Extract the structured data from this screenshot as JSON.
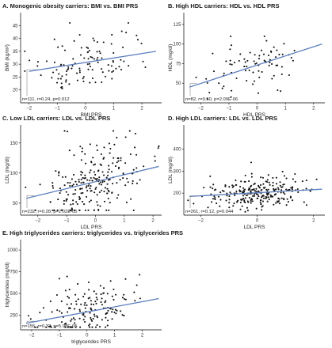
{
  "chart_data": [
    {
      "type": "scatter",
      "panel": "A.",
      "title": "Monogenic obesity carriers: BMI vs. BMI PRS",
      "xlabel": "BMI PRS",
      "ylabel": "BMI (kg/m²)",
      "xlim": [
        -2.3,
        2.7
      ],
      "ylim": [
        15,
        50
      ],
      "xticks": [
        -2,
        -1,
        0,
        1,
        2
      ],
      "yticks": [
        20,
        25,
        30,
        35,
        40,
        45
      ],
      "annotation": "n=111, r=0.24, p=0.012",
      "trend": {
        "x": [
          -2.0,
          2.5
        ],
        "y": [
          27.2,
          35.0
        ]
      },
      "seed": 11,
      "n": 111,
      "xmean": 0.0,
      "xsd": 0.85,
      "slope": 1.8,
      "intercept": 30.3,
      "noise": 5.0,
      "ymin": 17,
      "ymax": 46,
      "grid": false
    },
    {
      "type": "scatter",
      "panel": "B.",
      "title": "High HDL carriers: HDL vs. HDL PRS",
      "xlabel": "HDL PRS",
      "ylabel": "HDL (mg/dl)",
      "xlim": [
        -2.6,
        2.4
      ],
      "ylim": [
        25,
        140
      ],
      "xticks": [
        -2,
        -1,
        0,
        1,
        2
      ],
      "yticks": [
        50,
        75,
        100,
        125
      ],
      "annotation": "n=82, r=0.50, p=2.09E-06",
      "trend": {
        "x": [
          -2.4,
          2.3
        ],
        "y": [
          45,
          100
        ]
      },
      "seed": 22,
      "n": 82,
      "xmean": 0.0,
      "xsd": 0.85,
      "slope": 11.5,
      "intercept": 72,
      "noise": 18,
      "ymin": 30,
      "ymax": 135,
      "grid": false
    },
    {
      "type": "scatter",
      "panel": "C.",
      "title": "Low LDL carriers: LDL vs. LDL PRS",
      "xlabel": "LDL PRS",
      "ylabel": "LDL (mg/dl)",
      "xlim": [
        -2.6,
        2.3
      ],
      "ylim": [
        30,
        180
      ],
      "xticks": [
        -2,
        -1,
        0,
        1,
        2
      ],
      "yticks": [
        50,
        100,
        150
      ],
      "annotation": "n=232, r=0.28, p=2.02E-05",
      "trend": {
        "x": [
          -2.4,
          2.2
        ],
        "y": [
          58,
          111
        ]
      },
      "seed": 33,
      "n": 232,
      "xmean": 0.0,
      "xsd": 0.85,
      "slope": 11.5,
      "intercept": 85,
      "noise": 30,
      "ymin": 38,
      "ymax": 170,
      "grid": false
    },
    {
      "type": "scatter",
      "panel": "D.",
      "title": "High LDL carriers: LDL vs. LDL PRS",
      "xlabel": "LDL PRS",
      "ylabel": "LDL (mg/dl)",
      "xlim": [
        -2.6,
        2.4
      ],
      "ylim": [
        100,
        510
      ],
      "xticks": [
        -2,
        0,
        2
      ],
      "yticks": [
        200,
        300,
        400
      ],
      "annotation": "n=261, r=0.12, p=0.044",
      "trend": {
        "x": [
          -2.4,
          2.3
        ],
        "y": [
          185,
          218
        ]
      },
      "seed": 44,
      "n": 261,
      "xmean": 0.0,
      "xsd": 0.85,
      "slope": 7,
      "intercept": 200,
      "noise": 33,
      "ymin": 115,
      "ymax": 490,
      "grid": false
    },
    {
      "type": "scatter",
      "panel": "E.",
      "title": "High triglycerides carriers: triglycerides vs. triglycerides PRS",
      "xlabel": "triglycerides PRS",
      "ylabel": "triglycerides (mg/dl)",
      "xlim": [
        -2.4,
        2.7
      ],
      "ylim": [
        80,
        1120
      ],
      "xticks": [
        -2,
        -1,
        0,
        1,
        2
      ],
      "yticks": [
        250,
        500,
        750,
        1000
      ],
      "annotation": "n=155, r=0.32, p=5.98E-05",
      "trend": {
        "x": [
          -2.2,
          2.6
        ],
        "y": [
          155,
          440
        ]
      },
      "seed": 55,
      "n": 155,
      "xmean": 0.0,
      "xsd": 0.85,
      "slope": 60,
      "intercept": 290,
      "noise": 140,
      "ymin": 110,
      "ymax": 1060,
      "grid": false
    }
  ],
  "colors": {
    "trend": "#5b7fbf",
    "point": "#111111",
    "leader": "#888888"
  }
}
